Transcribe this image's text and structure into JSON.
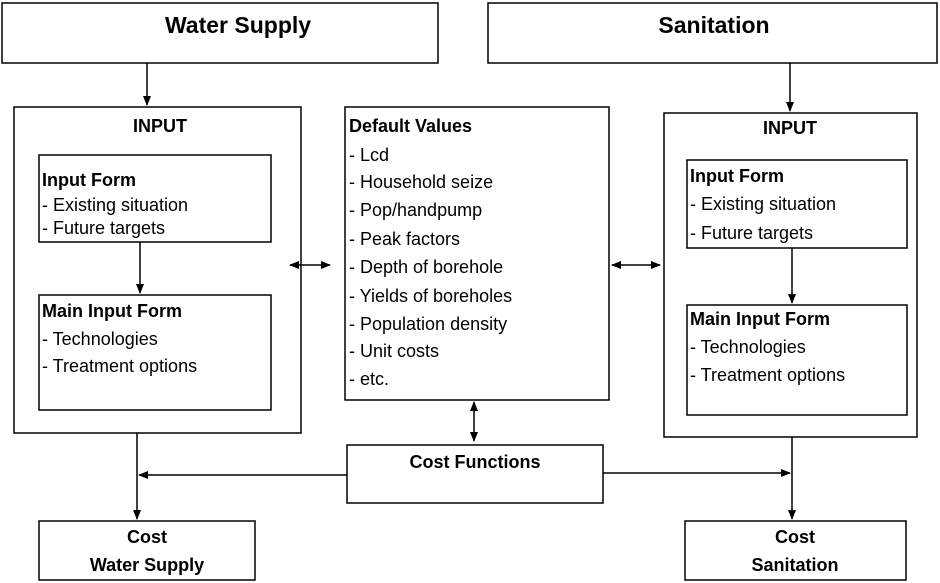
{
  "water_supply": {
    "title": "Water Supply"
  },
  "sanitation": {
    "title": "Sanitation"
  },
  "water_input": {
    "title": "INPUT",
    "input_form": {
      "title": "Input Form",
      "items": [
        "- Existing situation",
        "- Future targets"
      ]
    },
    "main_input_form": {
      "title": "Main Input Form",
      "items": [
        "- Technologies",
        "- Treatment options"
      ]
    }
  },
  "default_values": {
    "title": "Default Values",
    "items": [
      "- Lcd",
      "- Household seize",
      "- Pop/handpump",
      "- Peak factors",
      "- Depth of borehole",
      "- Yields of boreholes",
      "- Population density",
      "- Unit costs",
      "- etc."
    ]
  },
  "sanitation_input": {
    "title": "INPUT",
    "input_form": {
      "title": "Input Form",
      "items": [
        "- Existing situation",
        "- Future targets"
      ]
    },
    "main_input_form": {
      "title": "Main Input Form",
      "items": [
        "- Technologies",
        "- Treatment options"
      ]
    }
  },
  "cost_functions": {
    "title": "Cost Functions"
  },
  "cost_water_supply": {
    "lines": [
      "Cost",
      "Water Supply"
    ]
  },
  "cost_sanitation": {
    "lines": [
      "Cost",
      "Sanitation"
    ]
  }
}
